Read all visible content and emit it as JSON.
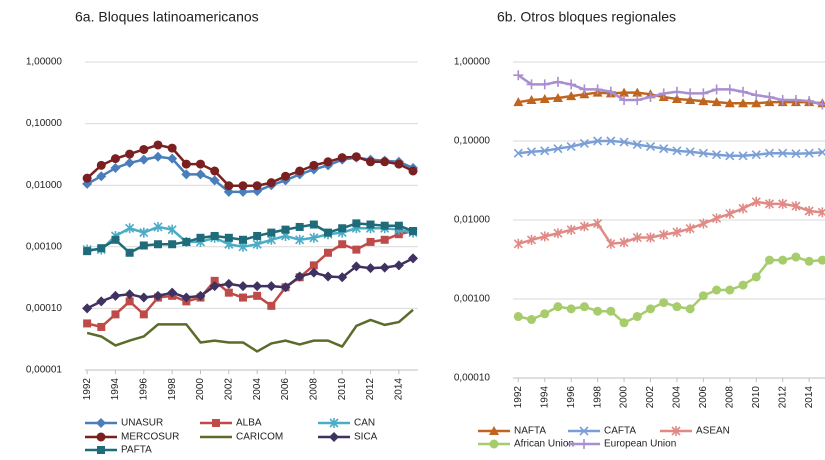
{
  "chart_data": [
    {
      "type": "line",
      "title": "6a. Bloques latinoamericanos",
      "log_y": true,
      "grid": true,
      "x": [
        1992,
        1993,
        1994,
        1995,
        1996,
        1997,
        1998,
        1999,
        2000,
        2001,
        2002,
        2003,
        2004,
        2005,
        2006,
        2007,
        2008,
        2009,
        2010,
        2011,
        2012,
        2013,
        2014,
        2015
      ],
      "xlim": [
        1991.85,
        2015.35
      ],
      "xticks": [
        1992,
        1994,
        1996,
        1998,
        2000,
        2002,
        2004,
        2006,
        2008,
        2010,
        2012,
        2014
      ],
      "ylim": [
        1e-05,
        1
      ],
      "yticks": [
        {
          "value": 1,
          "label": "1,00000"
        },
        {
          "value": 0.1,
          "label": "0,10000"
        },
        {
          "value": 0.01,
          "label": "0,01000"
        },
        {
          "value": 0.001,
          "label": "0,00100"
        },
        {
          "value": 0.0001,
          "label": "0,00010"
        },
        {
          "value": 1e-05,
          "label": "0,00001"
        }
      ],
      "series": [
        {
          "name": "UNASUR",
          "color": "#4a7ebb",
          "marker": "diamond",
          "values": [
            0.0105,
            0.014,
            0.019,
            0.023,
            0.026,
            0.029,
            0.027,
            0.015,
            0.015,
            0.012,
            0.0078,
            0.0078,
            0.008,
            0.01,
            0.012,
            0.015,
            0.018,
            0.021,
            0.026,
            0.028,
            0.026,
            0.025,
            0.024,
            0.019
          ]
        },
        {
          "name": "ALBA",
          "color": "#be4b48",
          "marker": "square",
          "values": [
            5.7e-05,
            5e-05,
            8e-05,
            0.00013,
            8e-05,
            0.00015,
            0.00016,
            0.00013,
            0.00015,
            0.00028,
            0.00018,
            0.00015,
            0.00016,
            0.00011,
            0.00022,
            0.00032,
            0.0005,
            0.0008,
            0.0011,
            0.0009,
            0.0012,
            0.0013,
            0.0016,
            0.0018
          ]
        },
        {
          "name": "CAN",
          "color": "#4bacc6",
          "marker": "star",
          "values": [
            0.0009,
            0.0009,
            0.0015,
            0.002,
            0.0017,
            0.0021,
            0.0019,
            0.0012,
            0.0012,
            0.0014,
            0.0011,
            0.001,
            0.0011,
            0.0013,
            0.0015,
            0.0013,
            0.0014,
            0.0016,
            0.0017,
            0.002,
            0.002,
            0.002,
            0.0019,
            0.0017
          ]
        },
        {
          "name": "MERCOSUR",
          "color": "#7b2020",
          "marker": "circle",
          "values": [
            0.013,
            0.021,
            0.027,
            0.032,
            0.038,
            0.045,
            0.04,
            0.022,
            0.022,
            0.017,
            0.0098,
            0.0098,
            0.0098,
            0.011,
            0.014,
            0.017,
            0.021,
            0.024,
            0.028,
            0.029,
            0.024,
            0.024,
            0.022,
            0.017
          ]
        },
        {
          "name": "CARICOM",
          "color": "#5a6b2a",
          "marker": "none",
          "values": [
            4e-05,
            3.5e-05,
            2.5e-05,
            3e-05,
            3.5e-05,
            5.5e-05,
            5.5e-05,
            5.5e-05,
            2.8e-05,
            3e-05,
            2.8e-05,
            2.8e-05,
            2e-05,
            2.7e-05,
            3e-05,
            2.6e-05,
            3e-05,
            3e-05,
            2.4e-05,
            5.2e-05,
            6.5e-05,
            5.4e-05,
            6e-05,
            9.5e-05
          ]
        },
        {
          "name": "SICA",
          "color": "#3f3160",
          "marker": "diamond",
          "values": [
            0.0001,
            0.00013,
            0.00016,
            0.00017,
            0.00015,
            0.00016,
            0.00018,
            0.00015,
            0.00016,
            0.00023,
            0.00025,
            0.00023,
            0.00023,
            0.00023,
            0.00022,
            0.00033,
            0.00038,
            0.00033,
            0.00032,
            0.00048,
            0.00045,
            0.00046,
            0.0005,
            0.00065
          ]
        },
        {
          "name": "PAFTA",
          "color": "#1f6b7a",
          "marker": "square",
          "values": [
            0.00085,
            0.00095,
            0.0013,
            0.0008,
            0.00105,
            0.0011,
            0.0011,
            0.0012,
            0.0014,
            0.0015,
            0.0014,
            0.0013,
            0.0015,
            0.0017,
            0.0019,
            0.0021,
            0.0023,
            0.0017,
            0.002,
            0.0024,
            0.0023,
            0.0022,
            0.0022,
            0.0018
          ]
        }
      ]
    },
    {
      "type": "line",
      "title": "6b. Otros bloques regionales",
      "log_y": true,
      "grid": true,
      "x": [
        1992,
        1993,
        1994,
        1995,
        1996,
        1997,
        1998,
        1999,
        2000,
        2001,
        2002,
        2003,
        2004,
        2005,
        2006,
        2007,
        2008,
        2009,
        2010,
        2011,
        2012,
        2013,
        2014,
        2015
      ],
      "xlim": [
        1991.6,
        2015.2
      ],
      "xticks": [
        1992,
        1994,
        1996,
        1998,
        2000,
        2002,
        2004,
        2006,
        2008,
        2010,
        2012,
        2014
      ],
      "ylim": [
        0.0001,
        1
      ],
      "yticks": [
        {
          "value": 1,
          "label": "1,00000"
        },
        {
          "value": 0.1,
          "label": "0,10000"
        },
        {
          "value": 0.01,
          "label": "0,01000"
        },
        {
          "value": 0.001,
          "label": "0,00100"
        },
        {
          "value": 0.0001,
          "label": "0,00010"
        }
      ],
      "series": [
        {
          "name": "NAFTA",
          "color": "#c0641e",
          "marker": "triangle",
          "values": [
            0.31,
            0.33,
            0.34,
            0.35,
            0.37,
            0.39,
            0.41,
            0.4,
            0.41,
            0.41,
            0.39,
            0.36,
            0.34,
            0.33,
            0.32,
            0.31,
            0.3,
            0.3,
            0.3,
            0.31,
            0.31,
            0.31,
            0.31,
            0.3
          ]
        },
        {
          "name": "CAFTA",
          "color": "#7a9fd6",
          "marker": "x",
          "values": [
            0.07,
            0.073,
            0.075,
            0.08,
            0.085,
            0.093,
            0.1,
            0.1,
            0.097,
            0.09,
            0.085,
            0.08,
            0.075,
            0.073,
            0.07,
            0.067,
            0.065,
            0.065,
            0.067,
            0.07,
            0.07,
            0.069,
            0.07,
            0.072
          ]
        },
        {
          "name": "ASEAN",
          "color": "#e08a86",
          "marker": "star",
          "values": [
            0.005,
            0.0056,
            0.0062,
            0.0068,
            0.0075,
            0.0083,
            0.009,
            0.005,
            0.0052,
            0.006,
            0.006,
            0.0065,
            0.007,
            0.0078,
            0.009,
            0.0105,
            0.012,
            0.014,
            0.017,
            0.016,
            0.016,
            0.015,
            0.013,
            0.0125
          ]
        },
        {
          "name": "African Union",
          "color": "#a6cc6b",
          "marker": "circle",
          "values": [
            0.0006,
            0.00055,
            0.00065,
            0.0008,
            0.00075,
            0.0008,
            0.0007,
            0.0007,
            0.0005,
            0.0006,
            0.00075,
            0.0009,
            0.0008,
            0.00075,
            0.0011,
            0.0013,
            0.0013,
            0.0015,
            0.0019,
            0.0031,
            0.0031,
            0.0034,
            0.003,
            0.0031
          ]
        },
        {
          "name": "European Union",
          "color": "#a98fcf",
          "marker": "plus",
          "values": [
            0.68,
            0.52,
            0.52,
            0.56,
            0.52,
            0.45,
            0.45,
            0.42,
            0.33,
            0.33,
            0.36,
            0.4,
            0.42,
            0.4,
            0.4,
            0.45,
            0.45,
            0.42,
            0.38,
            0.36,
            0.33,
            0.33,
            0.32,
            0.29
          ]
        }
      ]
    }
  ]
}
